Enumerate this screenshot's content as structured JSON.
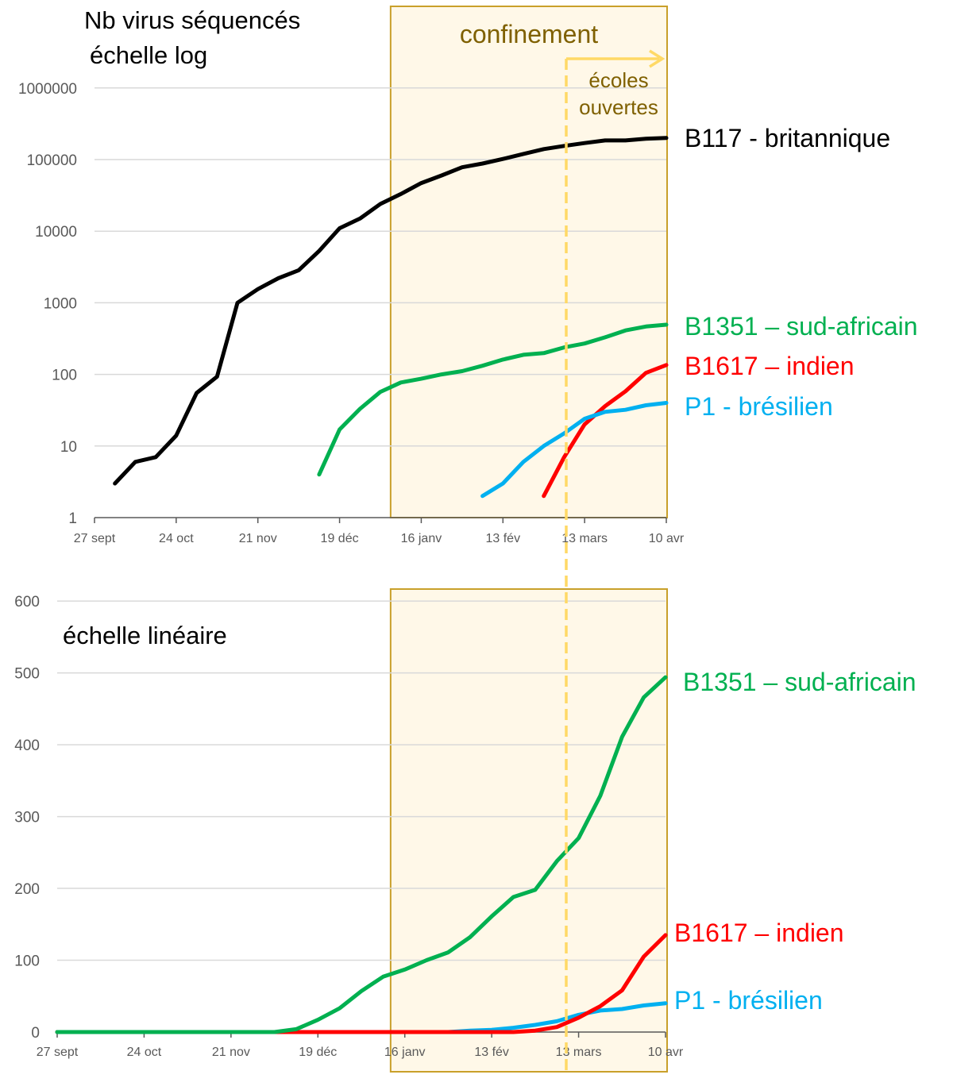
{
  "chart_data": [
    {
      "type": "line",
      "title": "Nb virus séquencés",
      "subtitle": "échelle log",
      "yscale": "log",
      "ylim": [
        1,
        1000000
      ],
      "yticks": [
        "1",
        "10",
        "100",
        "1000",
        "10000",
        "100000",
        "1000000"
      ],
      "xticks": [
        "27 sept",
        "24 oct",
        "21 nov",
        "19 déc",
        "16 janv",
        "13 fév",
        "13 mars",
        "10 avr"
      ],
      "x_weeks": 29,
      "grid": true,
      "series": [
        {
          "name": "B117 - britannique",
          "color": "#000000",
          "values": [
            null,
            3,
            6,
            7,
            14,
            55,
            93,
            1000,
            1550,
            2200,
            2850,
            5300,
            11000,
            15000,
            24000,
            33000,
            47000,
            60000,
            78000,
            88000,
            102000,
            120000,
            140000,
            155000,
            170000,
            185000,
            185000,
            195000,
            200000
          ]
        },
        {
          "name": "B1351 – sud-africain",
          "color": "#00b050",
          "values": [
            null,
            null,
            null,
            null,
            null,
            null,
            null,
            null,
            null,
            null,
            null,
            4,
            17,
            33,
            57,
            77,
            87,
            100,
            111,
            132,
            161,
            188,
            198,
            238,
            270,
            329,
            411,
            466,
            494
          ]
        },
        {
          "name": "B1617 – indien",
          "color": "#ff0000",
          "values": [
            null,
            null,
            null,
            null,
            null,
            null,
            null,
            null,
            null,
            null,
            null,
            null,
            null,
            null,
            null,
            null,
            null,
            null,
            null,
            null,
            null,
            null,
            2,
            7,
            20,
            36,
            58,
            105,
            135
          ]
        },
        {
          "name": "P1 - brésilien",
          "color": "#00b0f0",
          "values": [
            null,
            null,
            null,
            null,
            null,
            null,
            null,
            null,
            null,
            null,
            null,
            null,
            null,
            null,
            null,
            null,
            null,
            null,
            null,
            2,
            3,
            6,
            10,
            15,
            24,
            30,
            32,
            37,
            40
          ]
        }
      ],
      "annotations": {
        "lockdown_label": "confinement",
        "lockdown_start_week": 14.5,
        "lockdown_end_week": 28,
        "schools_label_1": "écoles",
        "schools_label_2": "ouvertes",
        "schools_week": 23.1,
        "lockdown_fill": "#fff8e8",
        "lockdown_border": "#c9a02a",
        "schools_color": "#ffd966"
      }
    },
    {
      "type": "line",
      "title": "échelle linéaire",
      "yscale": "linear",
      "ylim": [
        0,
        600
      ],
      "yticks": [
        "0",
        "100",
        "200",
        "300",
        "400",
        "500",
        "600"
      ],
      "xticks": [
        "27 sept",
        "24 oct",
        "21 nov",
        "19 déc",
        "16 janv",
        "13 fév",
        "13 mars",
        "10 avr"
      ],
      "grid": true,
      "series": [
        {
          "name": "B1351 – sud-africain",
          "color": "#00b050",
          "values": [
            0,
            0,
            0,
            0,
            0,
            0,
            0,
            0,
            0,
            0,
            0,
            4,
            17,
            33,
            57,
            77,
            87,
            100,
            111,
            132,
            161,
            188,
            198,
            238,
            270,
            329,
            411,
            466,
            494
          ]
        },
        {
          "name": "B1617 – indien",
          "color": "#ff0000",
          "values": [
            0,
            0,
            0,
            0,
            0,
            0,
            0,
            0,
            0,
            0,
            0,
            0,
            0,
            0,
            0,
            0,
            0,
            0,
            0,
            0,
            0,
            0,
            2,
            7,
            20,
            36,
            58,
            105,
            135
          ]
        },
        {
          "name": "P1 - brésilien",
          "color": "#00b0f0",
          "values": [
            0,
            0,
            0,
            0,
            0,
            0,
            0,
            0,
            0,
            0,
            0,
            0,
            0,
            0,
            0,
            0,
            0,
            0,
            0,
            2,
            3,
            6,
            10,
            15,
            24,
            30,
            32,
            37,
            40
          ]
        }
      ]
    }
  ]
}
